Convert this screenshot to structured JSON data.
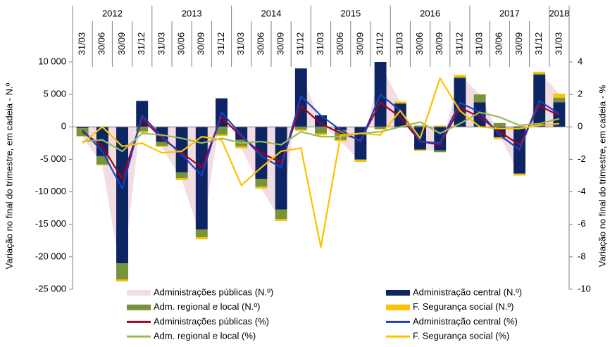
{
  "chart_data": {
    "type": "bar",
    "y_label": "Variação no final do trimestre, em cadeia - N.º",
    "y2_label": "Variação no final do trimestre, em cadeia - %",
    "years": [
      "2012",
      "2013",
      "2014",
      "2015",
      "2016",
      "2017",
      "2018"
    ],
    "categories": [
      "31/03",
      "30/06",
      "30/09",
      "31/12",
      "31/03",
      "30/06",
      "30/09",
      "31/12",
      "31/03",
      "30/06",
      "30/09",
      "31/12",
      "31/03",
      "30/06",
      "30/09",
      "31/12",
      "31/03",
      "30/06",
      "30/09",
      "31/12",
      "31/03",
      "30/06",
      "30/09",
      "31/12",
      "31/03"
    ],
    "ylim": [
      -25000,
      10000
    ],
    "yticks": [
      {
        "value": -25000,
        "label": "-25 000"
      },
      {
        "value": -20000,
        "label": "-20 000"
      },
      {
        "value": -15000,
        "label": "-15 000"
      },
      {
        "value": -10000,
        "label": "-10 000"
      },
      {
        "value": -5000,
        "label": "-5 000"
      },
      0,
      {
        "value": 5000,
        "label": "5 000"
      },
      {
        "value": 10000,
        "label": "10 000"
      }
    ],
    "y2lim": [
      -10,
      4
    ],
    "y2ticks": [
      -10,
      -8,
      -6,
      -4,
      -2,
      0,
      2,
      4
    ],
    "stacked": true,
    "series": [
      {
        "name": "Administrações públicas (N.º)",
        "type": "area",
        "color": "#f2dde4",
        "values": [
          -1500,
          -5900,
          -23800,
          3100,
          -3100,
          -8200,
          -17300,
          3000,
          -3300,
          -9500,
          -14500,
          8400,
          500,
          -2200,
          -5400,
          9600,
          3800,
          -3500,
          -3700,
          8000,
          5000,
          -1300,
          -7400,
          8500,
          5100
        ]
      },
      {
        "name": "Administração central (N.º)",
        "type": "bar",
        "color": "#0d2562",
        "values": [
          -200,
          -4500,
          -21000,
          4000,
          -2300,
          -7000,
          -15800,
          4400,
          -2000,
          -8000,
          -12700,
          9000,
          1800,
          -500,
          -5000,
          10000,
          3600,
          -3500,
          -3600,
          7500,
          3800,
          -1600,
          -7200,
          8000,
          3800
        ]
      },
      {
        "name": "Adm. regional e local (N.º)",
        "type": "bar",
        "color": "#77933c",
        "values": [
          -1200,
          -1300,
          -2500,
          -700,
          -600,
          -900,
          -1200,
          -1200,
          -1000,
          -1200,
          -1500,
          -400,
          -1000,
          -1500,
          -100,
          -300,
          -100,
          200,
          -300,
          200,
          1200,
          600,
          100,
          200,
          700
        ]
      },
      {
        "name": "F. Segurança social  (N.º)",
        "type": "bar",
        "color": "#ffc000",
        "values": [
          -100,
          -100,
          -300,
          -200,
          -200,
          -300,
          -300,
          -200,
          -300,
          -300,
          -300,
          -200,
          -300,
          -200,
          -300,
          -100,
          300,
          -200,
          200,
          300,
          0,
          -300,
          -300,
          300,
          600
        ]
      },
      {
        "name": "Administrações públicas (%)",
        "type": "line",
        "axis": "y2",
        "color": "#a50021",
        "values": [
          -0.3,
          -1.2,
          -3.2,
          0.5,
          -0.7,
          -1.6,
          -2.5,
          0.6,
          -0.6,
          -1.6,
          -2.2,
          1.3,
          0.2,
          -0.4,
          -0.8,
          1.5,
          0.6,
          -0.9,
          -1.1,
          1.2,
          0.6,
          -0.3,
          -1.1,
          1.3,
          0.7
        ]
      },
      {
        "name": "Administração central  (%)",
        "type": "line",
        "axis": "y2",
        "color": "#1f3fbf",
        "values": [
          -0.2,
          -1.5,
          -3.8,
          0.7,
          -0.6,
          -1.7,
          -3.0,
          0.9,
          -0.5,
          -1.8,
          -2.5,
          1.9,
          0.7,
          -0.2,
          -0.9,
          2.0,
          1.0,
          -0.9,
          -1.0,
          1.5,
          0.9,
          -0.5,
          -1.4,
          1.6,
          0.8
        ]
      },
      {
        "name": "Adm. regional e local (%)",
        "type": "line",
        "axis": "y2",
        "color": "#9bbb59",
        "values": [
          -0.9,
          -0.8,
          -1.5,
          -0.4,
          -0.5,
          -0.7,
          -1.0,
          -0.7,
          -1.0,
          -0.9,
          -1.1,
          -0.3,
          -0.6,
          -0.6,
          -0.4,
          -0.3,
          0.0,
          0.3,
          -0.4,
          0.2,
          0.9,
          0.6,
          0.1,
          0.2,
          0.5
        ]
      },
      {
        "name": "F. Segurança social  (%)",
        "type": "line",
        "axis": "y2",
        "color": "#ffc000",
        "values": [
          -1.0,
          0.0,
          -1.2,
          -1.0,
          -1.6,
          -1.5,
          -0.6,
          -0.8,
          -3.6,
          -2.5,
          -1.5,
          -1.3,
          -7.4,
          -0.5,
          -0.4,
          -0.5,
          1.0,
          -0.7,
          3.0,
          1.0,
          0.0,
          -0.1,
          -0.1,
          0.1,
          0.2
        ]
      }
    ]
  }
}
